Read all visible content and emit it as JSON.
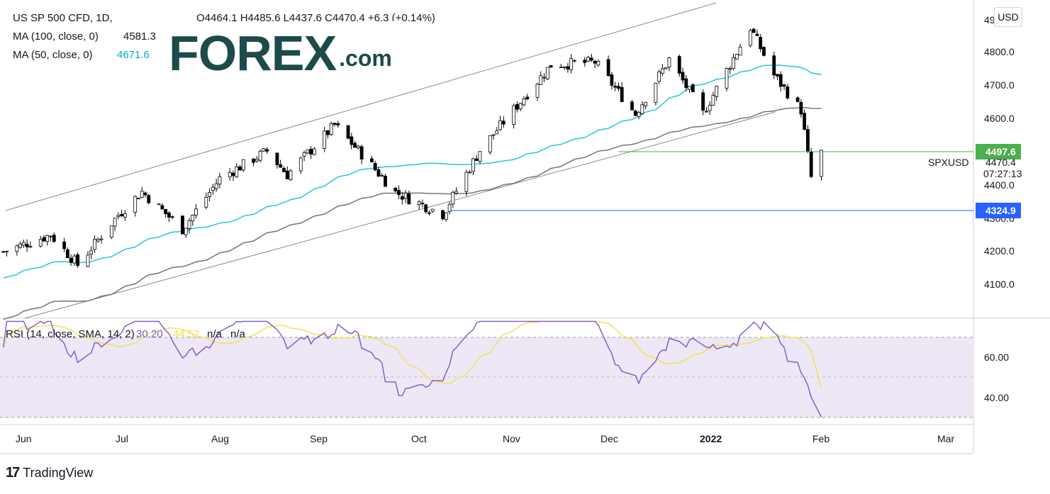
{
  "header": {
    "symbol": "US SP 500 CFD, 1D,",
    "ohlc": "O4464.1 H4485.6 L4437.6 C4470.4 +6.3 (+0.14%)",
    "ma100_label": "MA (100, close, 0)",
    "ma100_value": "4581.3",
    "ma50_label": "MA (50, close, 0)",
    "ma50_value": "4671.6"
  },
  "logo": {
    "main": "FOREX",
    "suffix": ".com"
  },
  "currency_button": "USD",
  "price_axis": {
    "ticks": [
      "4800.0",
      "4700.0",
      "4600.0",
      "4400.0",
      "4300.0",
      "4200.0",
      "4100.0"
    ],
    "top_partial": "49",
    "level_green": "4497.6",
    "level_blue": "4324.9",
    "current_price": "4470.4",
    "countdown": "07:27:13",
    "symbol_label": "SPXUSD"
  },
  "rsi": {
    "label": "RSI (14, close, SMA, 14, 2)",
    "value": "30.20",
    "sma_value": "44.57",
    "na1": "n/a",
    "na2": "n/a",
    "ticks": [
      "60.00",
      "40.00"
    ]
  },
  "x_axis": [
    "Jun",
    "Jul",
    "Aug",
    "Sep",
    "Oct",
    "Nov",
    "Dec",
    "2022",
    "Feb",
    "Mar"
  ],
  "footer": {
    "brand": "TradingView",
    "mark": "17"
  },
  "colors": {
    "bull": "#ffffff",
    "bear": "#000000",
    "ma50": "#26c6da",
    "ma100": "#757575",
    "channel": "#888888",
    "level_green": "#4caf50",
    "level_blue": "#2962ff",
    "rsi_line": "#7e57c2",
    "rsi_sma": "#f3e14a",
    "rsi_band": "#ede7f6"
  },
  "chart_data": {
    "type": "candlestick",
    "title": "US SP 500 CFD, 1D",
    "y_range": [
      4040,
      4870
    ],
    "x_range": [
      "2021-05-26",
      "2022-03-10"
    ],
    "ohlc_series": {
      "name": "US SP 500 CFD",
      "points": [
        {
          "x": "2021-05-27",
          "close": 4200
        },
        {
          "x": "2021-06-10",
          "close": 4245
        },
        {
          "x": "2021-06-18",
          "close": 4165
        },
        {
          "x": "2021-06-30",
          "close": 4298
        },
        {
          "x": "2021-07-07",
          "close": 4360
        },
        {
          "x": "2021-07-19",
          "close": 4260
        },
        {
          "x": "2021-07-30",
          "close": 4395
        },
        {
          "x": "2021-08-13",
          "close": 4468
        },
        {
          "x": "2021-08-19",
          "close": 4405
        },
        {
          "x": "2021-09-02",
          "close": 4537
        },
        {
          "x": "2021-09-10",
          "close": 4460
        },
        {
          "x": "2021-09-20",
          "close": 4358
        },
        {
          "x": "2021-10-04",
          "close": 4300
        },
        {
          "x": "2021-10-15",
          "close": 4470
        },
        {
          "x": "2021-11-05",
          "close": 4697
        },
        {
          "x": "2021-11-18",
          "close": 4705
        },
        {
          "x": "2021-11-30",
          "close": 4567
        },
        {
          "x": "2021-12-10",
          "close": 4712
        },
        {
          "x": "2021-12-20",
          "close": 4568
        },
        {
          "x": "2022-01-03",
          "close": 4797
        },
        {
          "x": "2022-01-10",
          "close": 4670
        },
        {
          "x": "2022-01-18",
          "close": 4577
        },
        {
          "x": "2022-01-21",
          "close": 4398
        },
        {
          "x": "2022-01-24",
          "close": 4470.4
        }
      ]
    },
    "ma50": {
      "name": "MA (50, close, 0)",
      "last": 4671.6
    },
    "ma100": {
      "name": "MA (100, close, 0)",
      "last": 4581.3
    },
    "horizontal_levels": [
      4497.6,
      4324.9
    ],
    "rsi_series": {
      "name": "RSI (14, close, SMA, 14, 2)",
      "last": 30.2,
      "sma_last": 44.57,
      "band": [
        30,
        70
      ]
    }
  }
}
